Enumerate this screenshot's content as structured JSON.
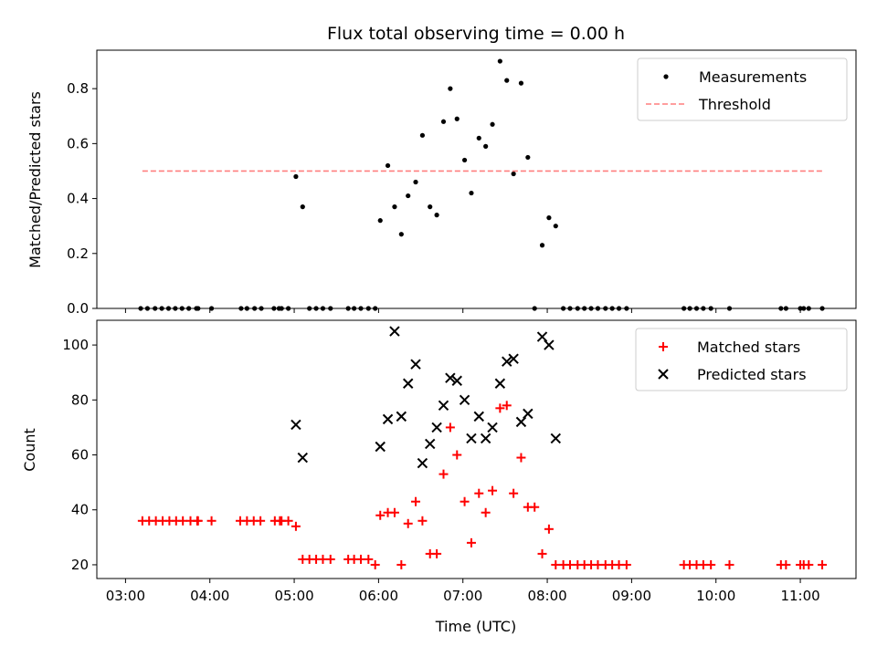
{
  "chart_data": {
    "type": "scatter",
    "title": "Flux total observing time = 0.00 h",
    "xlabel": "Time (UTC)",
    "x_tick_labels": [
      "03:00",
      "04:00",
      "05:00",
      "06:00",
      "07:00",
      "08:00",
      "09:00",
      "10:00",
      "11:00"
    ],
    "x_tick_values": [
      3,
      4,
      5,
      6,
      7,
      8,
      9,
      10,
      11
    ],
    "xlim": [
      2.66,
      11.66
    ],
    "grid": false,
    "panels": [
      {
        "ylabel": "Matched/Predicted stars",
        "ylim": [
          0,
          0.94
        ],
        "y_ticks": [
          0.0,
          0.2,
          0.4,
          0.6,
          0.8
        ],
        "y_tick_labels": [
          "0.0",
          "0.2",
          "0.4",
          "0.6",
          "0.8"
        ],
        "legend_position": "top-right",
        "series": [
          {
            "name": "Measurements",
            "marker": "dot",
            "color": "#000000",
            "points": [
              [
                3.18,
                0
              ],
              [
                3.26,
                0
              ],
              [
                3.35,
                0
              ],
              [
                3.43,
                0
              ],
              [
                3.51,
                0
              ],
              [
                3.59,
                0
              ],
              [
                3.67,
                0
              ],
              [
                3.75,
                0
              ],
              [
                3.84,
                0
              ],
              [
                3.86,
                0
              ],
              [
                4.02,
                0
              ],
              [
                4.37,
                0
              ],
              [
                4.44,
                0
              ],
              [
                4.53,
                0
              ],
              [
                4.61,
                0
              ],
              [
                4.76,
                0
              ],
              [
                4.82,
                0
              ],
              [
                4.85,
                0
              ],
              [
                4.93,
                0
              ],
              [
                5.02,
                0.48
              ],
              [
                5.1,
                0.37
              ],
              [
                5.18,
                0
              ],
              [
                5.26,
                0
              ],
              [
                5.34,
                0
              ],
              [
                5.43,
                0
              ],
              [
                5.64,
                0
              ],
              [
                5.71,
                0
              ],
              [
                5.79,
                0
              ],
              [
                5.88,
                0
              ],
              [
                5.96,
                0
              ],
              [
                6.02,
                0.32
              ],
              [
                6.11,
                0.52
              ],
              [
                6.19,
                0.37
              ],
              [
                6.27,
                0.27
              ],
              [
                6.35,
                0.41
              ],
              [
                6.44,
                0.46
              ],
              [
                6.52,
                0.63
              ],
              [
                6.61,
                0.37
              ],
              [
                6.69,
                0.34
              ],
              [
                6.77,
                0.68
              ],
              [
                6.85,
                0.8
              ],
              [
                6.93,
                0.69
              ],
              [
                7.02,
                0.54
              ],
              [
                7.1,
                0.42
              ],
              [
                7.19,
                0.62
              ],
              [
                7.27,
                0.59
              ],
              [
                7.35,
                0.67
              ],
              [
                7.44,
                0.9
              ],
              [
                7.52,
                0.83
              ],
              [
                7.6,
                0.49
              ],
              [
                7.69,
                0.82
              ],
              [
                7.77,
                0.55
              ],
              [
                7.85,
                0
              ],
              [
                7.94,
                0.23
              ],
              [
                8.02,
                0.33
              ],
              [
                8.1,
                0.3
              ],
              [
                8.19,
                0
              ],
              [
                8.27,
                0
              ],
              [
                8.36,
                0
              ],
              [
                8.44,
                0
              ],
              [
                8.52,
                0
              ],
              [
                8.6,
                0
              ],
              [
                8.69,
                0
              ],
              [
                8.77,
                0
              ],
              [
                8.85,
                0
              ],
              [
                8.94,
                0
              ],
              [
                9.62,
                0
              ],
              [
                9.69,
                0
              ],
              [
                9.77,
                0
              ],
              [
                9.85,
                0
              ],
              [
                9.94,
                0
              ],
              [
                10.16,
                0
              ],
              [
                10.77,
                0
              ],
              [
                10.83,
                0
              ],
              [
                11.0,
                0
              ],
              [
                11.04,
                0
              ],
              [
                11.1,
                0
              ],
              [
                11.26,
                0
              ]
            ]
          },
          {
            "name": "Threshold",
            "type": "line",
            "style": "dashed",
            "color": "#ff7f7f",
            "x": [
              3.2,
              11.26
            ],
            "value": 0.5
          }
        ]
      },
      {
        "ylabel": "Count",
        "ylim": [
          15,
          109
        ],
        "y_ticks": [
          20,
          40,
          60,
          80,
          100
        ],
        "y_tick_labels": [
          "20",
          "40",
          "60",
          "80",
          "100"
        ],
        "legend_position": "top-right",
        "series": [
          {
            "name": "Matched stars",
            "marker": "plus",
            "color": "#ff0000",
            "points": [
              [
                3.2,
                36
              ],
              [
                3.28,
                36
              ],
              [
                3.36,
                36
              ],
              [
                3.44,
                36
              ],
              [
                3.52,
                36
              ],
              [
                3.6,
                36
              ],
              [
                3.68,
                36
              ],
              [
                3.77,
                36
              ],
              [
                3.85,
                36
              ],
              [
                3.86,
                36
              ],
              [
                4.02,
                36
              ],
              [
                4.36,
                36
              ],
              [
                4.44,
                36
              ],
              [
                4.52,
                36
              ],
              [
                4.6,
                36
              ],
              [
                4.77,
                36
              ],
              [
                4.83,
                36
              ],
              [
                4.85,
                36
              ],
              [
                4.93,
                36
              ],
              [
                5.02,
                34
              ],
              [
                5.1,
                22
              ],
              [
                5.18,
                22
              ],
              [
                5.26,
                22
              ],
              [
                5.34,
                22
              ],
              [
                5.43,
                22
              ],
              [
                5.64,
                22
              ],
              [
                5.71,
                22
              ],
              [
                5.79,
                22
              ],
              [
                5.88,
                22
              ],
              [
                5.96,
                20
              ],
              [
                6.02,
                38
              ],
              [
                6.11,
                39
              ],
              [
                6.19,
                39
              ],
              [
                6.27,
                20
              ],
              [
                6.35,
                35
              ],
              [
                6.44,
                43
              ],
              [
                6.52,
                36
              ],
              [
                6.61,
                24
              ],
              [
                6.69,
                24
              ],
              [
                6.77,
                53
              ],
              [
                6.85,
                70
              ],
              [
                6.93,
                60
              ],
              [
                7.02,
                43
              ],
              [
                7.1,
                28
              ],
              [
                7.19,
                46
              ],
              [
                7.27,
                39
              ],
              [
                7.35,
                47
              ],
              [
                7.44,
                77
              ],
              [
                7.52,
                78
              ],
              [
                7.6,
                46
              ],
              [
                7.69,
                59
              ],
              [
                7.77,
                41
              ],
              [
                7.85,
                41
              ],
              [
                7.94,
                24
              ],
              [
                8.02,
                33
              ],
              [
                8.1,
                20
              ],
              [
                8.19,
                20
              ],
              [
                8.27,
                20
              ],
              [
                8.36,
                20
              ],
              [
                8.44,
                20
              ],
              [
                8.52,
                20
              ],
              [
                8.6,
                20
              ],
              [
                8.69,
                20
              ],
              [
                8.77,
                20
              ],
              [
                8.85,
                20
              ],
              [
                8.94,
                20
              ],
              [
                9.62,
                20
              ],
              [
                9.69,
                20
              ],
              [
                9.77,
                20
              ],
              [
                9.85,
                20
              ],
              [
                9.94,
                20
              ],
              [
                10.16,
                20
              ],
              [
                10.77,
                20
              ],
              [
                10.83,
                20
              ],
              [
                11.0,
                20
              ],
              [
                11.04,
                20
              ],
              [
                11.1,
                20
              ],
              [
                11.26,
                20
              ]
            ]
          },
          {
            "name": "Predicted stars",
            "marker": "x",
            "color": "#000000",
            "points": [
              [
                5.02,
                71
              ],
              [
                5.1,
                59
              ],
              [
                6.02,
                63
              ],
              [
                6.11,
                73
              ],
              [
                6.19,
                105
              ],
              [
                6.27,
                74
              ],
              [
                6.35,
                86
              ],
              [
                6.44,
                93
              ],
              [
                6.52,
                57
              ],
              [
                6.61,
                64
              ],
              [
                6.69,
                70
              ],
              [
                6.77,
                78
              ],
              [
                6.85,
                88
              ],
              [
                6.93,
                87
              ],
              [
                7.02,
                80
              ],
              [
                7.1,
                66
              ],
              [
                7.19,
                74
              ],
              [
                7.27,
                66
              ],
              [
                7.35,
                70
              ],
              [
                7.44,
                86
              ],
              [
                7.52,
                94
              ],
              [
                7.6,
                95
              ],
              [
                7.69,
                72
              ],
              [
                7.77,
                75
              ],
              [
                7.94,
                103
              ],
              [
                8.02,
                100
              ],
              [
                8.1,
                66
              ]
            ]
          }
        ]
      }
    ]
  }
}
